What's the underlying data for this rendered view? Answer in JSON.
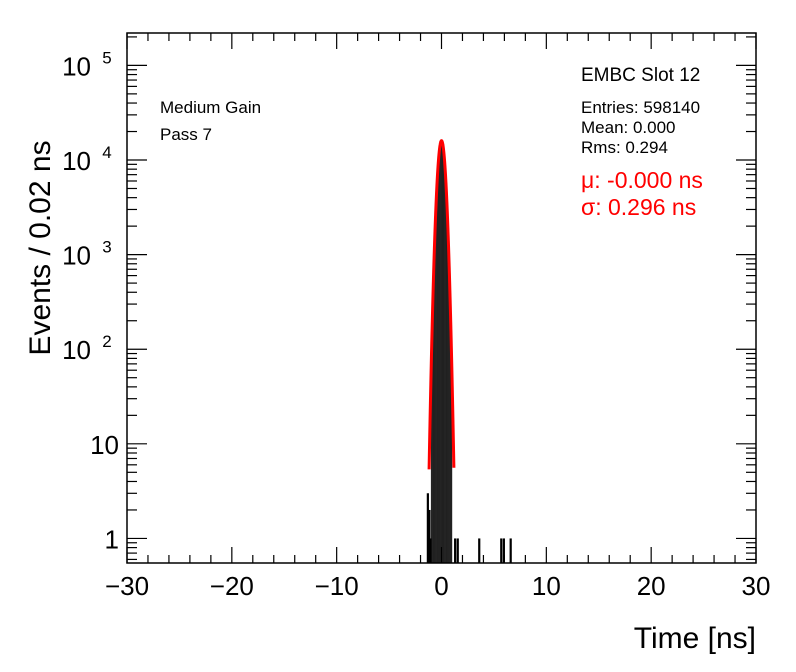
{
  "chart_data": {
    "type": "histogram",
    "xlabel": "Time [ns]",
    "ylabel": "Events / 0.02 ns",
    "xlim": [
      -30,
      30
    ],
    "ylim": [
      0.55,
      220000
    ],
    "yscale": "log",
    "grid": false,
    "x_ticks": [
      -30,
      -20,
      -10,
      0,
      10,
      20,
      30
    ],
    "x_tick_labels": [
      "−30",
      "−20",
      "−10",
      "0",
      "10",
      "20",
      "30"
    ],
    "y_ticks": [
      {
        "value": 1,
        "base": "1",
        "exp": ""
      },
      {
        "value": 10,
        "base": "10",
        "exp": ""
      },
      {
        "value": 100,
        "base": "10",
        "exp": "2"
      },
      {
        "value": 1000,
        "base": "10",
        "exp": "3"
      },
      {
        "value": 10000,
        "base": "10",
        "exp": "4"
      },
      {
        "value": 100000,
        "base": "10",
        "exp": "5"
      }
    ],
    "annotations": {
      "gain": "Medium Gain",
      "pass": "Pass 7"
    },
    "stats": {
      "title": "EMBC Slot 12",
      "entries": "Entries: 598140",
      "mean": "Mean: 0.000",
      "rms": "Rms: 0.294"
    },
    "fit": {
      "mu_text": "μ: -0.000 ns",
      "sigma_text": "σ: 0.296 ns",
      "mu": 0.0,
      "sigma": 0.296,
      "peak": 16000,
      "color": "#ff0000"
    },
    "histogram": {
      "color": "#000000",
      "tail_bins": [
        {
          "x": -1.3,
          "y": 3
        },
        {
          "x": -1.15,
          "y": 2
        },
        {
          "x": -1.05,
          "y": 1
        },
        {
          "x": 1.3,
          "y": 1
        },
        {
          "x": 1.55,
          "y": 1
        },
        {
          "x": 3.6,
          "y": 1
        },
        {
          "x": 5.7,
          "y": 1
        },
        {
          "x": 5.95,
          "y": 1
        },
        {
          "x": 6.6,
          "y": 1
        }
      ]
    }
  }
}
